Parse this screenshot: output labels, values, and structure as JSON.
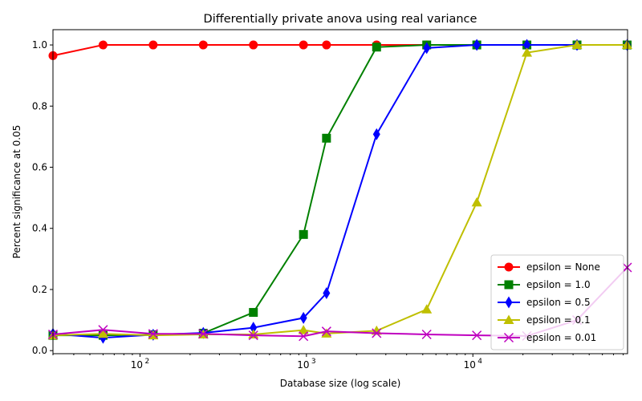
{
  "chart_data": {
    "type": "line",
    "title": "Differentially private anova using real variance",
    "xlabel": "Database size (log scale)",
    "ylabel": "Percent significance at 0.05",
    "xscale": "log",
    "xlim": [
      30,
      85000
    ],
    "ylim": [
      -0.01,
      1.05
    ],
    "x": [
      30,
      60,
      120,
      240,
      480,
      960,
      1320,
      2640,
      5280,
      10560,
      21120,
      42240,
      84480
    ],
    "xtick_labels": [
      {
        "value": 100,
        "base": "10",
        "exp": "2"
      },
      {
        "value": 1000,
        "base": "10",
        "exp": "3"
      },
      {
        "value": 10000,
        "base": "10",
        "exp": "4"
      }
    ],
    "yticks": [
      "0.0",
      "0.2",
      "0.4",
      "0.6",
      "0.8",
      "1.0"
    ],
    "grid": false,
    "legend_position": "bottom-right",
    "series": [
      {
        "name": "epsilon = None",
        "color": "#ff0000",
        "marker": "circle",
        "values": [
          0.965,
          1.0,
          1.0,
          1.0,
          1.0,
          1.0,
          1.0,
          1.0,
          1.0,
          1.0,
          1.0,
          1.0,
          1.0
        ]
      },
      {
        "name": "epsilon = 1.0",
        "color": "#008000",
        "marker": "square",
        "values": [
          0.05,
          0.05,
          0.052,
          0.057,
          0.125,
          0.38,
          0.695,
          0.993,
          1.0,
          1.0,
          1.0,
          1.0,
          1.0
        ]
      },
      {
        "name": "epsilon = 0.5",
        "color": "#0000ff",
        "marker": "thin_diamond",
        "values": [
          0.055,
          0.042,
          0.052,
          0.058,
          0.075,
          0.107,
          0.188,
          0.708,
          0.99,
          1.0,
          1.0,
          1.0,
          1.0
        ]
      },
      {
        "name": "epsilon = 0.1",
        "color": "#bfbf00",
        "marker": "triangle",
        "values": [
          0.05,
          0.055,
          0.05,
          0.053,
          0.053,
          0.067,
          0.056,
          0.065,
          0.135,
          0.485,
          0.975,
          1.0,
          1.0
        ]
      },
      {
        "name": "epsilon = 0.01",
        "color": "#bf00bf",
        "marker": "x",
        "values": [
          0.053,
          0.068,
          0.055,
          0.055,
          0.05,
          0.047,
          0.063,
          0.057,
          0.053,
          0.05,
          0.048,
          0.1,
          0.272
        ]
      }
    ]
  }
}
